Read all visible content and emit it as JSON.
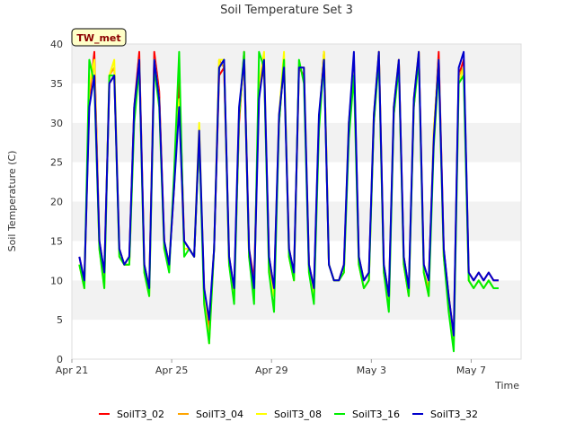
{
  "chart_data": {
    "type": "line",
    "title": "Soil Temperature Set 3",
    "xlabel": "Time",
    "ylabel": "Soil Temperature (C)",
    "badge": "TW_met",
    "xlim": [
      "2023-04-21",
      "2023-05-09"
    ],
    "ylim": [
      0,
      40
    ],
    "yticks": [
      0,
      5,
      10,
      15,
      20,
      25,
      30,
      35,
      40
    ],
    "xticks": [
      {
        "label": "Apr 21",
        "day": 0
      },
      {
        "label": "Apr 25",
        "day": 4
      },
      {
        "label": "Apr 29",
        "day": 8
      },
      {
        "label": "May 3",
        "day": 12
      },
      {
        "label": "May 7",
        "day": 16
      }
    ],
    "grid": "horizontal bands",
    "legend_position": "bottom",
    "x_day": [
      0.3,
      0.5,
      0.7,
      0.9,
      1.1,
      1.3,
      1.5,
      1.7,
      1.9,
      2.1,
      2.3,
      2.5,
      2.7,
      2.9,
      3.1,
      3.3,
      3.5,
      3.7,
      3.9,
      4.1,
      4.3,
      4.5,
      4.7,
      4.9,
      5.1,
      5.3,
      5.5,
      5.7,
      5.9,
      6.1,
      6.3,
      6.5,
      6.7,
      6.9,
      7.1,
      7.3,
      7.5,
      7.7,
      7.9,
      8.1,
      8.3,
      8.5,
      8.7,
      8.9,
      9.1,
      9.3,
      9.5,
      9.7,
      9.9,
      10.1,
      10.3,
      10.5,
      10.7,
      10.9,
      11.1,
      11.3,
      11.5,
      11.7,
      11.9,
      12.1,
      12.3,
      12.5,
      12.7,
      12.9,
      13.1,
      13.3,
      13.5,
      13.7,
      13.9,
      14.1,
      14.3,
      14.5,
      14.7,
      14.9,
      15.1,
      15.3,
      15.5,
      15.7,
      15.9,
      16.1,
      16.3,
      16.5,
      16.7,
      16.9,
      17.1
    ],
    "series": [
      {
        "name": "SoilT3_02",
        "color": "#ff0000",
        "values": [
          13,
          10,
          33,
          39,
          15,
          11,
          35,
          36,
          14,
          12,
          13,
          32,
          39,
          12,
          9,
          39,
          34,
          15,
          12,
          22,
          36,
          15,
          14,
          13,
          28,
          9,
          4,
          14,
          36,
          37,
          13,
          9,
          30,
          39,
          14,
          10,
          34,
          37,
          13,
          9,
          30,
          38,
          14,
          11,
          37,
          36,
          12,
          9,
          30,
          39,
          12,
          10,
          10,
          12,
          29,
          38,
          13,
          10,
          11,
          30,
          39,
          12,
          8,
          31,
          38,
          13,
          9,
          32,
          39,
          12,
          10,
          28,
          39,
          14,
          8,
          3,
          36,
          38,
          11,
          10,
          11,
          10,
          11,
          10,
          10
        ]
      },
      {
        "name": "SoilT3_04",
        "color": "#ffa500",
        "values": [
          12,
          9,
          34,
          38,
          14,
          10,
          36,
          37,
          14,
          12,
          12,
          31,
          38,
          12,
          9,
          38,
          33,
          14,
          12,
          23,
          33,
          14,
          14,
          13,
          29,
          8,
          3,
          14,
          38,
          37,
          12,
          8,
          31,
          38,
          13,
          9,
          35,
          38,
          12,
          8,
          31,
          38,
          13,
          10,
          37,
          37,
          12,
          8,
          30,
          39,
          12,
          10,
          10,
          11,
          30,
          38,
          12,
          9,
          10,
          31,
          39,
          11,
          7,
          32,
          38,
          12,
          8,
          33,
          39,
          11,
          9,
          29,
          38,
          13,
          7,
          2,
          36,
          37,
          10,
          9,
          10,
          9,
          10,
          9,
          9
        ]
      },
      {
        "name": "SoilT3_08",
        "color": "#ffff00",
        "values": [
          12,
          9,
          35,
          38,
          14,
          9,
          36,
          38,
          13,
          12,
          12,
          31,
          38,
          11,
          8,
          38,
          33,
          14,
          12,
          23,
          33,
          14,
          14,
          13,
          30,
          8,
          2,
          14,
          38,
          38,
          12,
          8,
          31,
          38,
          13,
          8,
          35,
          39,
          11,
          8,
          31,
          39,
          13,
          10,
          37,
          37,
          11,
          8,
          30,
          39,
          12,
          10,
          10,
          11,
          30,
          37,
          12,
          9,
          10,
          31,
          39,
          11,
          7,
          32,
          38,
          12,
          8,
          33,
          39,
          11,
          8,
          29,
          38,
          13,
          7,
          2,
          35,
          37,
          10,
          9,
          10,
          9,
          10,
          9,
          9
        ]
      },
      {
        "name": "SoilT3_16",
        "color": "#00ee00",
        "values": [
          12,
          9,
          38,
          35,
          14,
          9,
          36,
          36,
          13,
          12,
          12,
          30,
          37,
          11,
          8,
          37,
          32,
          14,
          11,
          24,
          39,
          13,
          14,
          13,
          28,
          7,
          2,
          14,
          37,
          38,
          12,
          7,
          31,
          39,
          13,
          7,
          39,
          37,
          11,
          6,
          30,
          38,
          13,
          10,
          38,
          35,
          11,
          7,
          29,
          38,
          12,
          10,
          10,
          11,
          28,
          36,
          12,
          9,
          10,
          30,
          38,
          11,
          6,
          31,
          37,
          12,
          8,
          32,
          38,
          11,
          8,
          27,
          37,
          13,
          6,
          1,
          35,
          36,
          10,
          9,
          10,
          9,
          10,
          9,
          9
        ]
      },
      {
        "name": "SoilT3_32",
        "color": "#0000cc",
        "values": [
          13,
          10,
          32,
          36,
          15,
          11,
          35,
          36,
          14,
          12,
          13,
          32,
          38,
          12,
          9,
          38,
          33,
          15,
          12,
          22,
          32,
          15,
          14,
          13,
          29,
          9,
          5,
          14,
          37,
          38,
          13,
          9,
          32,
          38,
          14,
          9,
          33,
          38,
          13,
          9,
          31,
          37,
          14,
          11,
          37,
          37,
          12,
          9,
          31,
          38,
          12,
          10,
          10,
          12,
          30,
          39,
          13,
          10,
          11,
          31,
          39,
          12,
          8,
          32,
          38,
          13,
          9,
          33,
          39,
          12,
          10,
          28,
          38,
          14,
          8,
          3,
          37,
          39,
          11,
          10,
          11,
          10,
          11,
          10,
          10
        ]
      }
    ]
  }
}
